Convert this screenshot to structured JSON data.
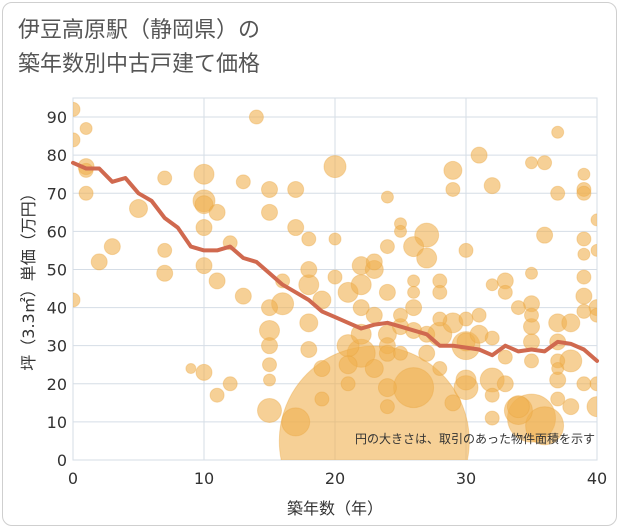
{
  "title_line1": "伊豆高原駅（静岡県）の",
  "title_line2": "築年数別中古戸建て価格",
  "chart_data": {
    "type": "scatter",
    "xlabel": "築年数（年）",
    "ylabel": "坪（3.3㎡）単価（万円）",
    "xlim": [
      0,
      40
    ],
    "ylim": [
      0,
      95
    ],
    "xticks": [
      0,
      10,
      20,
      30,
      40
    ],
    "yticks": [
      0,
      10,
      20,
      30,
      40,
      50,
      60,
      70,
      80,
      90
    ],
    "grid": true,
    "note": "円の大きさは、取引のあった物件面積を示す",
    "colors": {
      "bubble": "#f0b050",
      "line": "#d0694f",
      "grid": "#d5dde6"
    },
    "points": [
      {
        "x": 0,
        "y": 92,
        "s": 7
      },
      {
        "x": 0,
        "y": 84,
        "s": 7
      },
      {
        "x": 0,
        "y": 42,
        "s": 7
      },
      {
        "x": 1,
        "y": 87,
        "s": 6
      },
      {
        "x": 1,
        "y": 77,
        "s": 8
      },
      {
        "x": 1,
        "y": 76,
        "s": 7
      },
      {
        "x": 1,
        "y": 70,
        "s": 7
      },
      {
        "x": 2,
        "y": 52,
        "s": 8
      },
      {
        "x": 3,
        "y": 56,
        "s": 8
      },
      {
        "x": 5,
        "y": 66,
        "s": 9
      },
      {
        "x": 7,
        "y": 74,
        "s": 7
      },
      {
        "x": 7,
        "y": 55,
        "s": 7
      },
      {
        "x": 7,
        "y": 49,
        "s": 8
      },
      {
        "x": 9,
        "y": 24,
        "s": 5
      },
      {
        "x": 10,
        "y": 75,
        "s": 10
      },
      {
        "x": 10,
        "y": 68,
        "s": 11
      },
      {
        "x": 10,
        "y": 67,
        "s": 9
      },
      {
        "x": 10,
        "y": 61,
        "s": 8
      },
      {
        "x": 10,
        "y": 51,
        "s": 8
      },
      {
        "x": 10,
        "y": 23,
        "s": 8
      },
      {
        "x": 11,
        "y": 65,
        "s": 8
      },
      {
        "x": 11,
        "y": 47,
        "s": 8
      },
      {
        "x": 11,
        "y": 17,
        "s": 7
      },
      {
        "x": 12,
        "y": 57,
        "s": 7
      },
      {
        "x": 12,
        "y": 20,
        "s": 7
      },
      {
        "x": 13,
        "y": 73,
        "s": 7
      },
      {
        "x": 13,
        "y": 43,
        "s": 8
      },
      {
        "x": 14,
        "y": 90,
        "s": 7
      },
      {
        "x": 15,
        "y": 71,
        "s": 8
      },
      {
        "x": 15,
        "y": 65,
        "s": 8
      },
      {
        "x": 15,
        "y": 40,
        "s": 8
      },
      {
        "x": 15,
        "y": 34,
        "s": 10
      },
      {
        "x": 15,
        "y": 30,
        "s": 8
      },
      {
        "x": 15,
        "y": 25,
        "s": 7
      },
      {
        "x": 15,
        "y": 21,
        "s": 6
      },
      {
        "x": 15,
        "y": 13,
        "s": 12
      },
      {
        "x": 16,
        "y": 47,
        "s": 7
      },
      {
        "x": 16,
        "y": 41,
        "s": 11
      },
      {
        "x": 17,
        "y": 71,
        "s": 8
      },
      {
        "x": 17,
        "y": 61,
        "s": 8
      },
      {
        "x": 17,
        "y": 10,
        "s": 14
      },
      {
        "x": 18,
        "y": 58,
        "s": 7
      },
      {
        "x": 18,
        "y": 50,
        "s": 8
      },
      {
        "x": 18,
        "y": 46,
        "s": 10
      },
      {
        "x": 18,
        "y": 36,
        "s": 9
      },
      {
        "x": 18,
        "y": 29,
        "s": 8
      },
      {
        "x": 19,
        "y": 42,
        "s": 9
      },
      {
        "x": 19,
        "y": 24,
        "s": 8
      },
      {
        "x": 19,
        "y": 16,
        "s": 7
      },
      {
        "x": 20,
        "y": 77,
        "s": 11
      },
      {
        "x": 20,
        "y": 58,
        "s": 6
      },
      {
        "x": 20,
        "y": 48,
        "s": 7
      },
      {
        "x": 21,
        "y": 44,
        "s": 10
      },
      {
        "x": 21,
        "y": 30,
        "s": 11
      },
      {
        "x": 21,
        "y": 25,
        "s": 9
      },
      {
        "x": 21,
        "y": 20,
        "s": 7
      },
      {
        "x": 22,
        "y": 51,
        "s": 9
      },
      {
        "x": 22,
        "y": 46,
        "s": 10
      },
      {
        "x": 22,
        "y": 40,
        "s": 8
      },
      {
        "x": 22,
        "y": 33,
        "s": 10
      },
      {
        "x": 22,
        "y": 28,
        "s": 14
      },
      {
        "x": 23,
        "y": 52,
        "s": 8
      },
      {
        "x": 23,
        "y": 50,
        "s": 9
      },
      {
        "x": 23,
        "y": 38,
        "s": 8
      },
      {
        "x": 23,
        "y": 24,
        "s": 9
      },
      {
        "x": 23,
        "y": 5,
        "s": 95
      },
      {
        "x": 24,
        "y": 69,
        "s": 6
      },
      {
        "x": 24,
        "y": 56,
        "s": 7
      },
      {
        "x": 24,
        "y": 44,
        "s": 8
      },
      {
        "x": 24,
        "y": 33,
        "s": 9
      },
      {
        "x": 24,
        "y": 30,
        "s": 8
      },
      {
        "x": 24,
        "y": 28,
        "s": 8
      },
      {
        "x": 24,
        "y": 19,
        "s": 9
      },
      {
        "x": 24,
        "y": 14,
        "s": 7
      },
      {
        "x": 25,
        "y": 62,
        "s": 6
      },
      {
        "x": 25,
        "y": 60,
        "s": 6
      },
      {
        "x": 25,
        "y": 38,
        "s": 7
      },
      {
        "x": 25,
        "y": 35,
        "s": 8
      },
      {
        "x": 25,
        "y": 28,
        "s": 7
      },
      {
        "x": 26,
        "y": 56,
        "s": 10
      },
      {
        "x": 26,
        "y": 47,
        "s": 6
      },
      {
        "x": 26,
        "y": 44,
        "s": 6
      },
      {
        "x": 26,
        "y": 40,
        "s": 8
      },
      {
        "x": 26,
        "y": 34,
        "s": 8
      },
      {
        "x": 26,
        "y": 19,
        "s": 20
      },
      {
        "x": 27,
        "y": 59,
        "s": 12
      },
      {
        "x": 27,
        "y": 53,
        "s": 10
      },
      {
        "x": 27,
        "y": 33,
        "s": 8
      },
      {
        "x": 27,
        "y": 28,
        "s": 8
      },
      {
        "x": 28,
        "y": 47,
        "s": 7
      },
      {
        "x": 28,
        "y": 44,
        "s": 7
      },
      {
        "x": 28,
        "y": 37,
        "s": 7
      },
      {
        "x": 28,
        "y": 33,
        "s": 12
      },
      {
        "x": 28,
        "y": 24,
        "s": 7
      },
      {
        "x": 29,
        "y": 76,
        "s": 9
      },
      {
        "x": 29,
        "y": 71,
        "s": 7
      },
      {
        "x": 29,
        "y": 36,
        "s": 10
      },
      {
        "x": 29,
        "y": 15,
        "s": 8
      },
      {
        "x": 30,
        "y": 55,
        "s": 7
      },
      {
        "x": 30,
        "y": 37,
        "s": 7
      },
      {
        "x": 30,
        "y": 31,
        "s": 9
      },
      {
        "x": 30,
        "y": 30,
        "s": 14
      },
      {
        "x": 30,
        "y": 21,
        "s": 10
      },
      {
        "x": 30,
        "y": 19,
        "s": 12
      },
      {
        "x": 31,
        "y": 80,
        "s": 8
      },
      {
        "x": 31,
        "y": 38,
        "s": 7
      },
      {
        "x": 31,
        "y": 33,
        "s": 9
      },
      {
        "x": 32,
        "y": 72,
        "s": 8
      },
      {
        "x": 32,
        "y": 46,
        "s": 6
      },
      {
        "x": 32,
        "y": 32,
        "s": 7
      },
      {
        "x": 32,
        "y": 21,
        "s": 12
      },
      {
        "x": 32,
        "y": 17,
        "s": 7
      },
      {
        "x": 32,
        "y": 11,
        "s": 7
      },
      {
        "x": 33,
        "y": 47,
        "s": 8
      },
      {
        "x": 33,
        "y": 44,
        "s": 7
      },
      {
        "x": 33,
        "y": 27,
        "s": 7
      },
      {
        "x": 33,
        "y": 20,
        "s": 8
      },
      {
        "x": 34,
        "y": 40,
        "s": 7
      },
      {
        "x": 34,
        "y": 14,
        "s": 11
      },
      {
        "x": 34,
        "y": 13,
        "s": 14
      },
      {
        "x": 35,
        "y": 78,
        "s": 6
      },
      {
        "x": 35,
        "y": 49,
        "s": 6
      },
      {
        "x": 35,
        "y": 41,
        "s": 8
      },
      {
        "x": 35,
        "y": 38,
        "s": 7
      },
      {
        "x": 35,
        "y": 35,
        "s": 8
      },
      {
        "x": 35,
        "y": 31,
        "s": 8
      },
      {
        "x": 35,
        "y": 26,
        "s": 7
      },
      {
        "x": 35,
        "y": 11,
        "s": 24
      },
      {
        "x": 36,
        "y": 78,
        "s": 7
      },
      {
        "x": 36,
        "y": 59,
        "s": 8
      },
      {
        "x": 36,
        "y": 9,
        "s": 19
      },
      {
        "x": 37,
        "y": 86,
        "s": 6
      },
      {
        "x": 37,
        "y": 70,
        "s": 7
      },
      {
        "x": 37,
        "y": 36,
        "s": 9
      },
      {
        "x": 37,
        "y": 31,
        "s": 8
      },
      {
        "x": 37,
        "y": 26,
        "s": 7
      },
      {
        "x": 37,
        "y": 24,
        "s": 6
      },
      {
        "x": 37,
        "y": 21,
        "s": 8
      },
      {
        "x": 37,
        "y": 16,
        "s": 7
      },
      {
        "x": 38,
        "y": 36,
        "s": 9
      },
      {
        "x": 38,
        "y": 26,
        "s": 11
      },
      {
        "x": 38,
        "y": 14,
        "s": 8
      },
      {
        "x": 39,
        "y": 75,
        "s": 6
      },
      {
        "x": 39,
        "y": 71,
        "s": 7
      },
      {
        "x": 39,
        "y": 70,
        "s": 7
      },
      {
        "x": 39,
        "y": 58,
        "s": 7
      },
      {
        "x": 39,
        "y": 54,
        "s": 6
      },
      {
        "x": 39,
        "y": 48,
        "s": 7
      },
      {
        "x": 39,
        "y": 43,
        "s": 8
      },
      {
        "x": 39,
        "y": 39,
        "s": 7
      },
      {
        "x": 39,
        "y": 20,
        "s": 7
      },
      {
        "x": 40,
        "y": 63,
        "s": 6
      },
      {
        "x": 40,
        "y": 55,
        "s": 6
      },
      {
        "x": 40,
        "y": 40,
        "s": 8
      },
      {
        "x": 40,
        "y": 38,
        "s": 7
      },
      {
        "x": 40,
        "y": 20,
        "s": 7
      },
      {
        "x": 40,
        "y": 14,
        "s": 10
      }
    ],
    "trend": [
      {
        "x": 0,
        "y": 78
      },
      {
        "x": 1,
        "y": 76.5
      },
      {
        "x": 2,
        "y": 76.5
      },
      {
        "x": 3,
        "y": 73
      },
      {
        "x": 4,
        "y": 74
      },
      {
        "x": 5,
        "y": 70
      },
      {
        "x": 6,
        "y": 68
      },
      {
        "x": 7,
        "y": 63.5
      },
      {
        "x": 8,
        "y": 61
      },
      {
        "x": 9,
        "y": 56
      },
      {
        "x": 10,
        "y": 55
      },
      {
        "x": 11,
        "y": 55
      },
      {
        "x": 12,
        "y": 56
      },
      {
        "x": 13,
        "y": 53
      },
      {
        "x": 14,
        "y": 52
      },
      {
        "x": 15,
        "y": 49
      },
      {
        "x": 16,
        "y": 46
      },
      {
        "x": 17,
        "y": 44
      },
      {
        "x": 18,
        "y": 42
      },
      {
        "x": 19,
        "y": 39
      },
      {
        "x": 20,
        "y": 37.5
      },
      {
        "x": 21,
        "y": 36
      },
      {
        "x": 22,
        "y": 34.5
      },
      {
        "x": 23,
        "y": 35.5
      },
      {
        "x": 24,
        "y": 36
      },
      {
        "x": 25,
        "y": 35
      },
      {
        "x": 26,
        "y": 34
      },
      {
        "x": 27,
        "y": 33
      },
      {
        "x": 28,
        "y": 30
      },
      {
        "x": 29,
        "y": 30
      },
      {
        "x": 30,
        "y": 29.5
      },
      {
        "x": 31,
        "y": 29
      },
      {
        "x": 32,
        "y": 27.5
      },
      {
        "x": 33,
        "y": 30
      },
      {
        "x": 34,
        "y": 28.5
      },
      {
        "x": 35,
        "y": 29
      },
      {
        "x": 36,
        "y": 28.5
      },
      {
        "x": 37,
        "y": 31
      },
      {
        "x": 38,
        "y": 30.5
      },
      {
        "x": 39,
        "y": 29
      },
      {
        "x": 40,
        "y": 26
      }
    ]
  }
}
